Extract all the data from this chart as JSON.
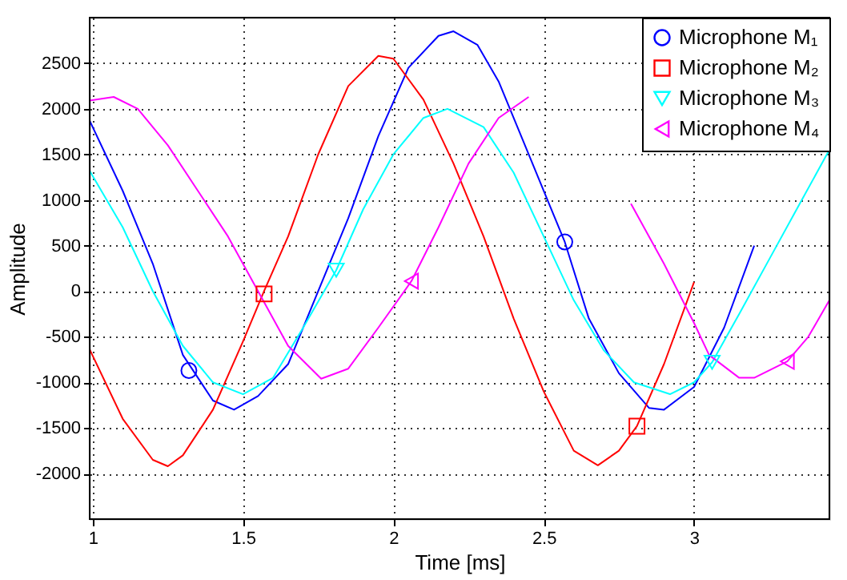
{
  "chart_data": {
    "type": "line",
    "xlabel": "Time [ms]",
    "ylabel": "Amplitude",
    "xlim": [
      0.99,
      3.45
    ],
    "ylim": [
      -2500,
      3000
    ],
    "xticks": [
      {
        "value": 1,
        "label": "1"
      },
      1.5,
      {
        "value": 2,
        "label": "2"
      },
      2.5,
      {
        "value": 3,
        "label": "3"
      }
    ],
    "yticks": [
      -2000,
      -1500,
      -1000,
      -500,
      0,
      500,
      1000,
      1500,
      2000,
      2500
    ],
    "grid": true,
    "legend": "top right",
    "line_style": "solid",
    "series": [
      {
        "name": "Microphone M₁",
        "color": "#0000ff",
        "x": [
          0.99,
          1.1,
          1.2,
          1.3,
          1.4,
          1.47,
          1.55,
          1.65,
          1.75,
          1.85,
          1.95,
          2.05,
          2.15,
          2.2,
          2.28,
          2.35,
          2.45,
          2.57,
          2.65,
          2.75,
          2.85,
          2.9,
          3.0,
          3.1,
          3.2
        ],
        "values": [
          1870,
          1100,
          300,
          -700,
          -1200,
          -1300,
          -1150,
          -800,
          0,
          800,
          1700,
          2450,
          2800,
          2850,
          2700,
          2300,
          1500,
          540,
          -300,
          -900,
          -1280,
          -1300,
          -1050,
          -400,
          500
        ]
      },
      {
        "name": "Microphone M₂",
        "color": "#ff0000",
        "x": [
          0.99,
          1.1,
          1.2,
          1.25,
          1.3,
          1.4,
          1.5,
          1.57,
          1.65,
          1.75,
          1.85,
          1.95,
          2.0,
          2.1,
          2.2,
          2.3,
          2.4,
          2.5,
          2.6,
          2.68,
          2.75,
          2.81,
          2.9,
          3.0
        ],
        "values": [
          -640,
          -1400,
          -1850,
          -1920,
          -1800,
          -1300,
          -550,
          0,
          600,
          1500,
          2250,
          2580,
          2550,
          2100,
          1400,
          600,
          -300,
          -1100,
          -1750,
          -1910,
          -1750,
          -1480,
          -800,
          100
        ]
      },
      {
        "name": "Microphone M₃",
        "color": "#00ffff",
        "x": [
          0.99,
          1.1,
          1.2,
          1.3,
          1.4,
          1.5,
          1.6,
          1.7,
          1.81,
          1.9,
          2.0,
          2.1,
          2.18,
          2.3,
          2.4,
          2.5,
          2.6,
          2.7,
          2.8,
          2.92,
          3.0,
          3.06,
          3.15,
          3.25,
          3.35,
          3.45
        ],
        "values": [
          1320,
          700,
          0,
          -600,
          -1000,
          -1130,
          -950,
          -400,
          230,
          900,
          1500,
          1900,
          2000,
          1800,
          1300,
          600,
          -100,
          -650,
          -1000,
          -1130,
          -1000,
          -780,
          -250,
          350,
          950,
          1550
        ]
      },
      {
        "name": "Microphone M₄",
        "color": "#ff00ff",
        "x": [
          0.99,
          1.07,
          1.15,
          1.25,
          1.35,
          1.45,
          1.55,
          1.65,
          1.76,
          1.85,
          1.95,
          2.06,
          2.15,
          2.25,
          2.35,
          2.45,
          2.6,
          2.79,
          2.9,
          3.0,
          3.05,
          3.15,
          3.2,
          3.31,
          3.38,
          3.45
        ],
        "values": [
          2090,
          2130,
          2000,
          1600,
          1100,
          600,
          0,
          -600,
          -960,
          -850,
          -400,
          110,
          700,
          1400,
          1900,
          2130,
          null,
          960,
          300,
          -350,
          -700,
          -950,
          -950,
          -770,
          -500,
          -100
        ]
      },
      {
        "type": "scatter",
        "color": "#0000ff",
        "marker": "circle",
        "x": [
          1.32,
          2.57
        ],
        "values": [
          -870,
          540
        ]
      },
      {
        "type": "scatter",
        "color": "#ff0000",
        "marker": "square",
        "x": [
          1.57,
          2.81
        ],
        "values": [
          -30,
          -1480
        ]
      },
      {
        "type": "scatter",
        "color": "#00ffff",
        "marker": "triangle-down",
        "x": [
          1.81,
          3.06
        ],
        "values": [
          230,
          -780
        ]
      },
      {
        "type": "scatter",
        "color": "#ff00ff",
        "marker": "triangle-left",
        "x": [
          2.06,
          3.31
        ],
        "values": [
          110,
          -770
        ]
      }
    ]
  }
}
